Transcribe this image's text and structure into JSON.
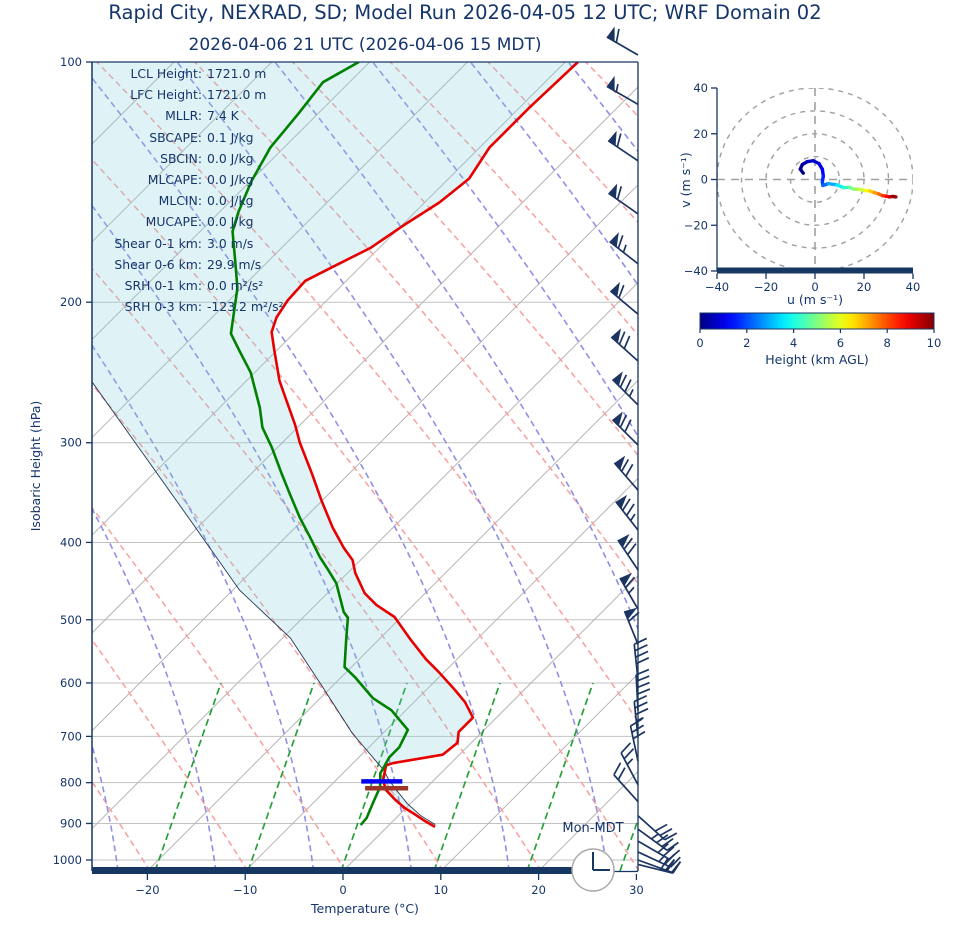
{
  "title": "Rapid City, NEXRAD, SD; Model Run 2026-04-05 12 UTC; WRF Domain 02",
  "subtitle": "2026-04-06 21 UTC  (2026-04-06 15 MDT)",
  "skewt": {
    "xlabel": "Temperature (°C)",
    "ylabel": "Isobaric Height (hPa)",
    "x_ticks": [
      -20,
      -10,
      0,
      10,
      20,
      30
    ],
    "pressure_ticks": [
      100,
      200,
      300,
      400,
      500,
      600,
      700,
      800,
      900,
      1000
    ],
    "day_label": "Mon-MDT",
    "clock_time": "15:00",
    "stats": [
      {
        "label": "LCL Height",
        "value": "1721.0 m"
      },
      {
        "label": "LFC Height",
        "value": "1721.0 m"
      },
      {
        "label": "MLLR",
        "value": "7.4 K"
      },
      {
        "label": "SBCAPE",
        "value": "0.1 J/kg"
      },
      {
        "label": "SBCIN",
        "value": "0.0 J/kg"
      },
      {
        "label": "MLCAPE",
        "value": "0.0 J/kg"
      },
      {
        "label": "MLCIN",
        "value": "0.0 J/kg"
      },
      {
        "label": "MUCAPE",
        "value": "0.0 J/kg"
      },
      {
        "label": "Shear 0-1 km",
        "value": "3.0 m/s"
      },
      {
        "label": "Shear 0-6 km",
        "value": "29.9 m/s"
      },
      {
        "label": "SRH 0-1 km",
        "value": "0.0 m²/s²"
      },
      {
        "label": "SRH 0-3 km",
        "value": "-123.2 m²/s²"
      }
    ]
  },
  "hodograph": {
    "xlabel": "u (m s⁻¹)",
    "ylabel": "v (m s⁻¹)",
    "x_ticks": [
      -40,
      -20,
      0,
      20,
      40
    ],
    "y_ticks": [
      -40,
      -20,
      0,
      20,
      40
    ],
    "ring_radii": [
      10,
      20,
      30,
      40
    ]
  },
  "colorbar": {
    "label": "Height (km AGL)",
    "ticks": [
      0,
      2,
      4,
      6,
      8,
      10
    ],
    "min": 0,
    "max": 10
  },
  "colors": {
    "text_navy": "#15356b",
    "spine_navy": "#173763",
    "temperature": "#e60000",
    "dewpoint": "#008000",
    "parcel": "#24344f",
    "cin_fill": "rgba(127,207,219,0.25)",
    "isotherm": "#b5b5b5",
    "pressure_line": "#c2c2c2",
    "dry_adiabat": "#f89f9f",
    "moist_adiabat": "#8f8fe6",
    "mixing_ratio": "#28a038",
    "barb": "#1c3461",
    "lcl_bar": "#0404f0",
    "lfc_bar": "#9c3529",
    "ring_gray": "#a0a0a0"
  },
  "chart_data": {
    "type": "skewt_log_p_with_hodograph",
    "pressure_unit": "hPa",
    "temperature_unit": "degC",
    "temperature_profile": [
      [
        100,
        -58.7
      ],
      [
        114,
        -59.0
      ],
      [
        128,
        -59.0
      ],
      [
        140,
        -57.9
      ],
      [
        150,
        -58.5
      ],
      [
        160,
        -59.8
      ],
      [
        171,
        -60.9
      ],
      [
        180,
        -62.7
      ],
      [
        188,
        -64.2
      ],
      [
        199,
        -64.0
      ],
      [
        209,
        -63.4
      ],
      [
        218,
        -62.4
      ],
      [
        229,
        -60.4
      ],
      [
        251,
        -56.6
      ],
      [
        285,
        -50.5
      ],
      [
        300,
        -48.2
      ],
      [
        328,
        -43.8
      ],
      [
        355,
        -40.0
      ],
      [
        383,
        -36.2
      ],
      [
        406,
        -33.0
      ],
      [
        421,
        -30.8
      ],
      [
        437,
        -29.2
      ],
      [
        463,
        -26.2
      ],
      [
        479,
        -23.8
      ],
      [
        496,
        -20.7
      ],
      [
        529,
        -16.8
      ],
      [
        560,
        -13.2
      ],
      [
        581,
        -10.6
      ],
      [
        611,
        -7.2
      ],
      [
        634,
        -4.8
      ],
      [
        663,
        -2.4
      ],
      [
        691,
        -2.4
      ],
      [
        713,
        -1.4
      ],
      [
        738,
        -1.7
      ],
      [
        756,
        -5.9
      ],
      [
        761,
        -6.4
      ],
      [
        794,
        -5.2
      ],
      [
        817,
        -3.9
      ],
      [
        841,
        -1.9
      ],
      [
        861,
        -0.1
      ],
      [
        876,
        1.5
      ],
      [
        894,
        3.3
      ],
      [
        909,
        4.9
      ]
    ],
    "dewpoint_profile": [
      [
        100,
        -81.1
      ],
      [
        106,
        -82.7
      ],
      [
        116,
        -82.0
      ],
      [
        128,
        -81.4
      ],
      [
        141,
        -79.9
      ],
      [
        154,
        -78.1
      ],
      [
        163,
        -76.7
      ],
      [
        178,
        -73.3
      ],
      [
        192,
        -70.4
      ],
      [
        219,
        -66.4
      ],
      [
        230,
        -63.8
      ],
      [
        245,
        -60.4
      ],
      [
        271,
        -55.9
      ],
      [
        287,
        -53.6
      ],
      [
        304,
        -50.6
      ],
      [
        328,
        -46.9
      ],
      [
        347,
        -44.1
      ],
      [
        372,
        -40.6
      ],
      [
        394,
        -37.5
      ],
      [
        417,
        -34.5
      ],
      [
        433,
        -32.3
      ],
      [
        450,
        -30.1
      ],
      [
        489,
        -26.4
      ],
      [
        497,
        -25.4
      ],
      [
        530,
        -23.3
      ],
      [
        573,
        -20.7
      ],
      [
        590,
        -18.6
      ],
      [
        627,
        -14.6
      ],
      [
        649,
        -11.5
      ],
      [
        687,
        -7.8
      ],
      [
        722,
        -6.9
      ],
      [
        743,
        -6.9
      ],
      [
        767,
        -6.4
      ],
      [
        778,
        -6.2
      ],
      [
        810,
        -4.8
      ],
      [
        848,
        -3.9
      ],
      [
        886,
        -3.0
      ],
      [
        904,
        -2.9
      ]
    ],
    "parcel_profile": [
      [
        252,
        -75.6
      ],
      [
        375,
        -51.5
      ],
      [
        459,
        -39.3
      ],
      [
        527,
        -29.2
      ],
      [
        607,
        -20.9
      ],
      [
        693,
        -13.2
      ],
      [
        771,
        -6.2
      ],
      [
        794,
        -4.6
      ],
      [
        820,
        -2.6
      ],
      [
        850,
        -0.3
      ],
      [
        880,
        2.3
      ],
      [
        903,
        4.7
      ]
    ],
    "shading": "CIN area shaded cyan between parcel path and temperature profile",
    "lcl_marker": {
      "p": 797,
      "t_center": -5.2,
      "t_halfwidth": 2.1
    },
    "lfc_marker": {
      "p": 813,
      "t_center": -4.0,
      "t_halfwidth": 2.2
    },
    "wind_barbs": [
      [
        98,
        -150,
        1,
        1,
        0
      ],
      [
        113,
        -150,
        1,
        0,
        1
      ],
      [
        133,
        -146,
        1,
        1,
        0
      ],
      [
        155,
        -145,
        1,
        1,
        0
      ],
      [
        179,
        -142,
        1,
        1,
        1
      ],
      [
        207,
        -140,
        1,
        1,
        0
      ],
      [
        237,
        -138,
        1,
        2,
        0
      ],
      [
        269,
        -135,
        1,
        2,
        1
      ],
      [
        302,
        -135,
        1,
        2,
        0
      ],
      [
        344,
        -131,
        1,
        2,
        0
      ],
      [
        386,
        -128,
        1,
        2,
        1
      ],
      [
        433,
        -124,
        1,
        2,
        0
      ],
      [
        485,
        -120,
        1,
        1,
        1
      ],
      [
        537,
        -112,
        1,
        1,
        0
      ],
      [
        595,
        -96,
        0,
        4,
        0
      ],
      [
        650,
        -93,
        0,
        4,
        0
      ],
      [
        702,
        -96,
        0,
        3,
        1
      ],
      [
        752,
        -102,
        0,
        3,
        0
      ],
      [
        805,
        -118,
        0,
        2,
        1
      ],
      [
        845,
        -132,
        0,
        2,
        0
      ],
      [
        880,
        42,
        0,
        3,
        0
      ],
      [
        915,
        36,
        0,
        3,
        1
      ],
      [
        947,
        30,
        0,
        3,
        0
      ],
      [
        977,
        25,
        0,
        2,
        1
      ],
      [
        1000,
        20,
        0,
        2,
        0
      ],
      [
        1013,
        14,
        0,
        3,
        0
      ]
    ],
    "wind_barbs_format": "[pressure_hPa, staff_angle_deg, pennants, full_barbs, half_barbs]",
    "hodograph_trace": [
      [
        -4.8,
        2.8,
        0.0
      ],
      [
        -6.0,
        4.5,
        0.15
      ],
      [
        -5.2,
        6.5,
        0.3
      ],
      [
        -3.2,
        7.8,
        0.5
      ],
      [
        -0.8,
        8.2,
        0.7
      ],
      [
        1.6,
        7.0,
        0.9
      ],
      [
        3.0,
        4.5,
        1.1
      ],
      [
        3.4,
        1.5,
        1.4
      ],
      [
        3.0,
        -1.0,
        1.7
      ],
      [
        3.2,
        -2.6,
        2.0
      ],
      [
        5.5,
        -1.8,
        2.6
      ],
      [
        9.0,
        -2.4,
        3.2
      ],
      [
        11.7,
        -3.6,
        4.0
      ],
      [
        14.0,
        -3.4,
        4.5
      ],
      [
        15.8,
        -4.2,
        5.0
      ],
      [
        18.0,
        -4.3,
        5.5
      ],
      [
        20.7,
        -4.9,
        6.0
      ],
      [
        22.4,
        -5.0,
        6.5
      ],
      [
        24.1,
        -5.7,
        7.0
      ],
      [
        26.0,
        -6.3,
        7.5
      ],
      [
        27.6,
        -7.1,
        8.0
      ],
      [
        29.0,
        -7.3,
        8.5
      ],
      [
        30.3,
        -7.6,
        9.0
      ],
      [
        31.7,
        -7.4,
        9.5
      ],
      [
        33.0,
        -7.6,
        10.0
      ]
    ],
    "hodograph_trace_format": "[u_ms, v_ms, height_km_AGL]",
    "hodograph_axis_range": [
      -40,
      40
    ],
    "colorbar_range_km": [
      0,
      10
    ]
  }
}
